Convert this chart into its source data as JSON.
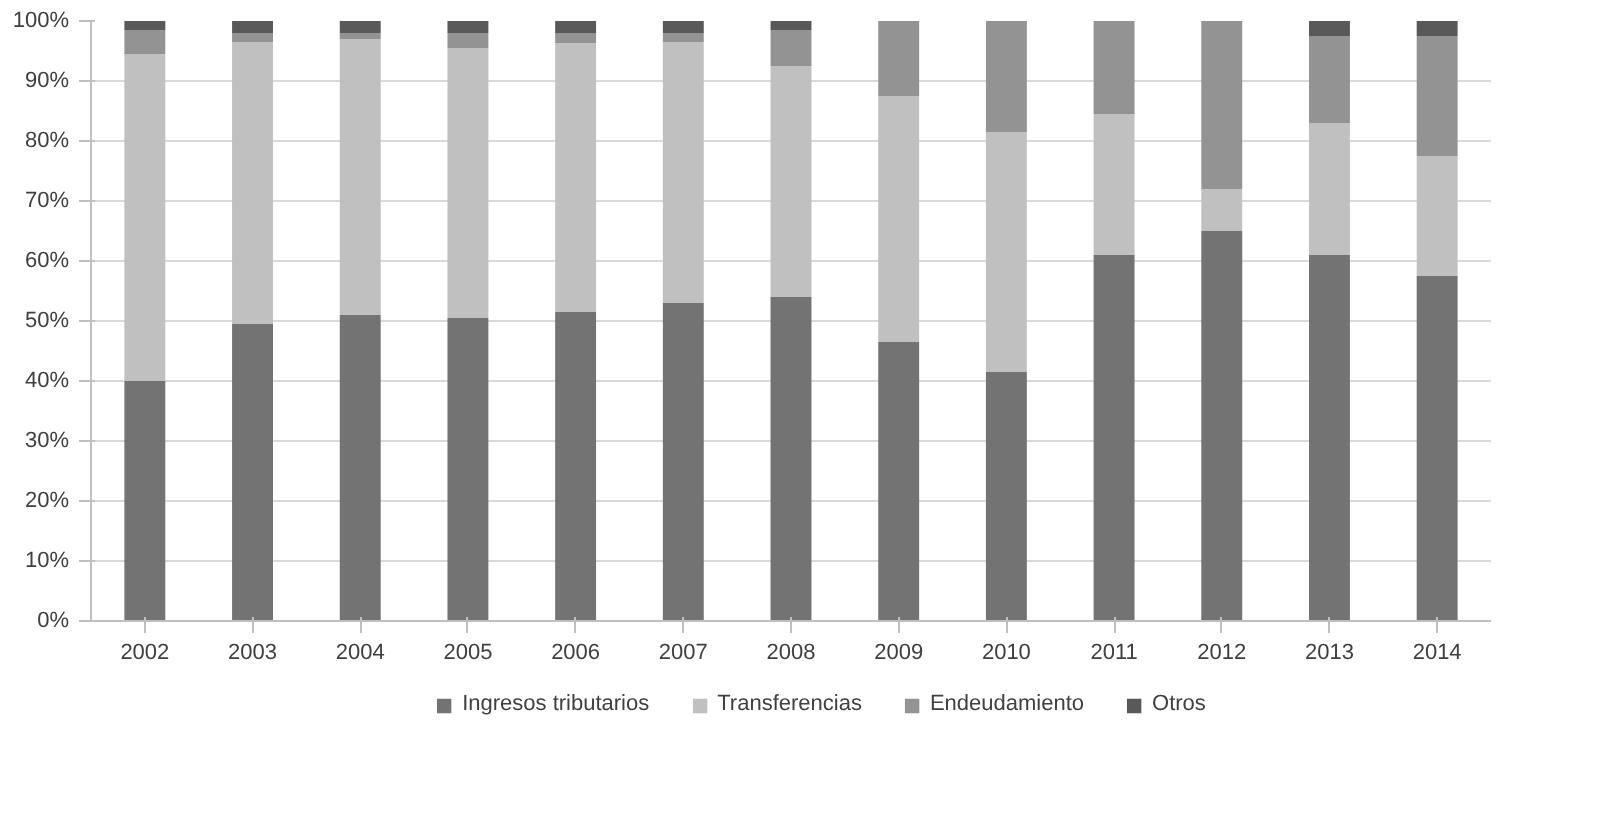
{
  "chart_data": {
    "type": "bar",
    "stacked": true,
    "categories": [
      "2002",
      "2003",
      "2004",
      "2005",
      "2006",
      "2007",
      "2008",
      "2009",
      "2010",
      "2011",
      "2012",
      "2013",
      "2014"
    ],
    "series": [
      {
        "name": "Ingresos tributarios",
        "color": "#737373",
        "values": [
          40,
          49.5,
          51,
          50.5,
          51.5,
          53,
          54,
          46.5,
          41.5,
          61,
          65,
          61,
          57.5
        ]
      },
      {
        "name": "Transferencias",
        "color": "#c0c0c0",
        "values": [
          54.5,
          47,
          46,
          45,
          44.8,
          43.5,
          38.5,
          41,
          40,
          23.5,
          7,
          22,
          20
        ]
      },
      {
        "name": "Endeudamiento",
        "color": "#939393",
        "values": [
          4,
          1.5,
          1,
          2.5,
          1.7,
          1.5,
          6,
          12.5,
          18.5,
          15.5,
          28,
          14.5,
          20
        ]
      },
      {
        "name": "Otros",
        "color": "#595959",
        "values": [
          1.5,
          2,
          2,
          2,
          2,
          2,
          1.5,
          0,
          0,
          0,
          0,
          2.5,
          2.5
        ]
      }
    ],
    "ylim": [
      0,
      100
    ],
    "yticks": [
      {
        "value": 0,
        "label": "0%"
      },
      {
        "value": 10,
        "label": "10%"
      },
      {
        "value": 20,
        "label": "20%"
      },
      {
        "value": 30,
        "label": "30%"
      },
      {
        "value": 40,
        "label": "40%"
      },
      {
        "value": 50,
        "label": "50%"
      },
      {
        "value": 60,
        "label": "60%"
      },
      {
        "value": 70,
        "label": "70%"
      },
      {
        "value": 80,
        "label": "80%"
      },
      {
        "value": 90,
        "label": "90%"
      },
      {
        "value": 100,
        "label": "100%"
      }
    ],
    "grid": "y",
    "legend": "bottom"
  }
}
